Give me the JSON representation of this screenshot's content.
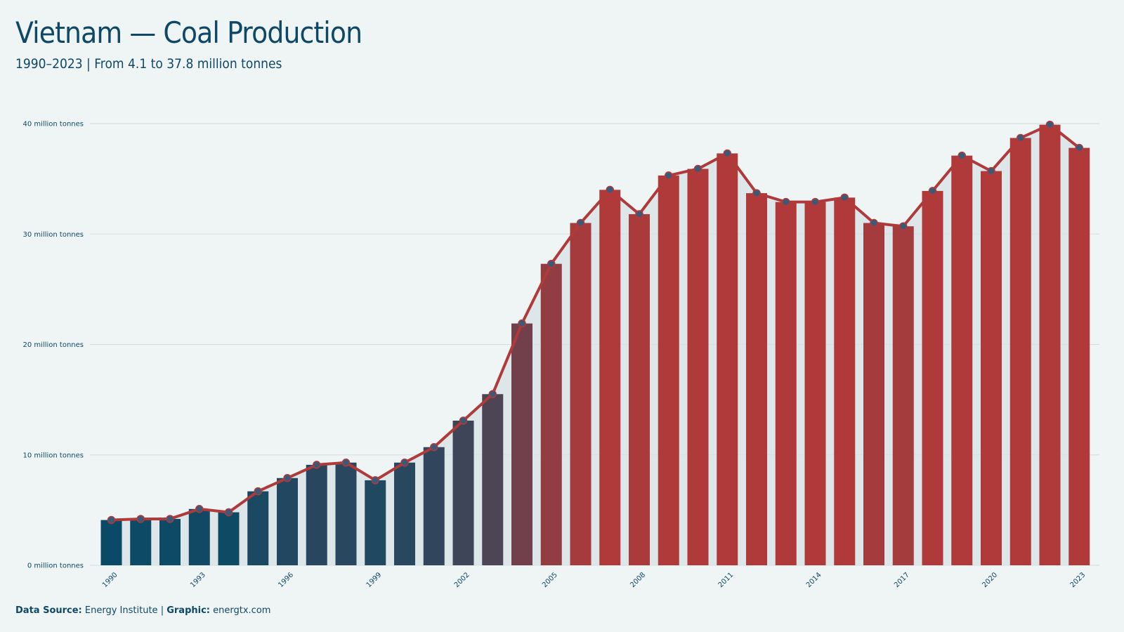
{
  "header": {
    "title": "Vietnam — Coal Production",
    "subtitle": "1990–2023 | From 4.1 to 37.8 million tonnes"
  },
  "footer": {
    "source_label": "Data Source:",
    "source_value": "Energy Institute",
    "separator": "|",
    "graphic_label": "Graphic:",
    "graphic_value": "energtx.com"
  },
  "colors": {
    "background": "#eff5f5",
    "line": "#b03a3a",
    "bar_low": "#0b4a66",
    "bar_high": "#b03a3a",
    "marker_fill": "#3a5a7a",
    "text": "#0e4866"
  },
  "chart_data": {
    "type": "bar",
    "title": "Vietnam — Coal Production",
    "subtitle": "1990–2023 | From 4.1 to 37.8 million tonnes",
    "xlabel": "",
    "ylabel": "",
    "unit": "million tonnes",
    "ylim": [
      0,
      40
    ],
    "yticks": [
      0,
      10,
      20,
      30,
      40
    ],
    "ytick_labels": [
      "0 million tonnes",
      "10 million tonnes",
      "20 million tonnes",
      "30 million tonnes",
      "40 million tonnes"
    ],
    "xtick_labels": [
      "1990",
      "1993",
      "1996",
      "1999",
      "2002",
      "2005",
      "2008",
      "2011",
      "2014",
      "2017",
      "2020",
      "2023"
    ],
    "grid": true,
    "categories": [
      "1990",
      "1991",
      "1992",
      "1993",
      "1994",
      "1995",
      "1996",
      "1997",
      "1998",
      "1999",
      "2000",
      "2001",
      "2002",
      "2003",
      "2004",
      "2005",
      "2006",
      "2007",
      "2008",
      "2009",
      "2010",
      "2011",
      "2012",
      "2013",
      "2014",
      "2015",
      "2016",
      "2017",
      "2018",
      "2019",
      "2020",
      "2021",
      "2022",
      "2023"
    ],
    "values": [
      4.1,
      4.2,
      4.2,
      5.1,
      4.8,
      6.7,
      7.9,
      9.1,
      9.3,
      7.7,
      9.3,
      10.7,
      13.1,
      15.5,
      21.9,
      27.3,
      31.0,
      34.0,
      31.8,
      35.3,
      35.9,
      37.3,
      33.7,
      32.9,
      32.9,
      33.3,
      31.0,
      30.7,
      33.9,
      37.1,
      35.7,
      38.7,
      39.9,
      37.8
    ],
    "overlay": "line-with-markers"
  }
}
